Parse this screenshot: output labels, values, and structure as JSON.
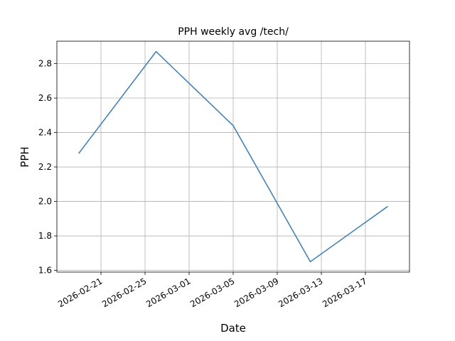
{
  "chart_data": {
    "type": "line",
    "title": "PPH weekly avg /tech/",
    "xlabel": "Date",
    "ylabel": "PPH",
    "x": [
      "2026-02-19",
      "2026-02-26",
      "2026-03-05",
      "2026-03-12",
      "2026-03-19"
    ],
    "series": [
      {
        "values": [
          2.28,
          2.87,
          2.44,
          1.65,
          1.97
        ]
      }
    ],
    "x_ticks": [
      "2026-02-21",
      "2026-02-25",
      "2026-03-01",
      "2026-03-05",
      "2026-03-09",
      "2026-03-13",
      "2026-03-17"
    ],
    "y_ticks": [
      1.6,
      1.8,
      2.0,
      2.2,
      2.4,
      2.6,
      2.8
    ],
    "xlim": [
      "2026-02-17",
      "2026-03-21"
    ],
    "ylim": [
      1.59,
      2.93
    ],
    "grid": true,
    "colors": {
      "line": "#4682b4"
    }
  }
}
